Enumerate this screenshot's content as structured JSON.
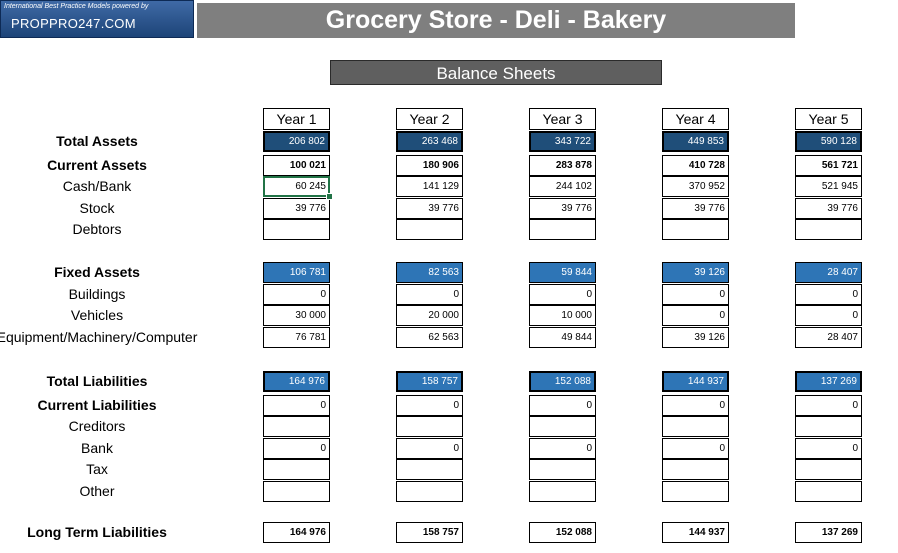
{
  "header": {
    "logo_tagline": "International Best Practice Models powered by",
    "logo_name": "PROPPRO247.COM",
    "title": "Grocery Store - Deli - Bakery",
    "section": "Balance Sheets"
  },
  "years": [
    "Year 1",
    "Year 2",
    "Year 3",
    "Year 4",
    "Year 5"
  ],
  "rows": [
    {
      "label": "Total Assets",
      "values": [
        "206 802",
        "263 468",
        "343 722",
        "449 853",
        "590 128"
      ]
    },
    {
      "label": "Current Assets",
      "values": [
        "100 021",
        "180 906",
        "283 878",
        "410 728",
        "561 721"
      ]
    },
    {
      "label": "Cash/Bank",
      "values": [
        "60 245",
        "141 129",
        "244 102",
        "370 952",
        "521 945"
      ]
    },
    {
      "label": "Stock",
      "values": [
        "39 776",
        "39 776",
        "39 776",
        "39 776",
        "39 776"
      ]
    },
    {
      "label": "Debtors",
      "values": [
        "",
        "",
        "",
        "",
        ""
      ]
    },
    {
      "label": "Fixed Assets",
      "values": [
        "106 781",
        "82 563",
        "59 844",
        "39 126",
        "28 407"
      ]
    },
    {
      "label": "Buildings",
      "values": [
        "0",
        "0",
        "0",
        "0",
        "0"
      ]
    },
    {
      "label": "Vehicles",
      "values": [
        "30 000",
        "20 000",
        "10 000",
        "0",
        "0"
      ]
    },
    {
      "label": "Equipment/Machinery/Computer",
      "values": [
        "76 781",
        "62 563",
        "49 844",
        "39 126",
        "28 407"
      ]
    },
    {
      "label": "Total Liabilities",
      "values": [
        "164 976",
        "158 757",
        "152 088",
        "144 937",
        "137 269"
      ]
    },
    {
      "label": "Current Liabilities",
      "values": [
        "0",
        "0",
        "0",
        "0",
        "0"
      ]
    },
    {
      "label": "Creditors",
      "values": [
        "",
        "",
        "",
        "",
        ""
      ]
    },
    {
      "label": "Bank",
      "values": [
        "0",
        "0",
        "0",
        "0",
        "0"
      ]
    },
    {
      "label": "Tax",
      "values": [
        "",
        "",
        "",
        "",
        ""
      ]
    },
    {
      "label": "Other",
      "values": [
        "",
        "",
        "",
        "",
        ""
      ]
    },
    {
      "label": "Long Term Liabilities",
      "values": [
        "164 976",
        "158 757",
        "152 088",
        "144 937",
        "137 269"
      ]
    }
  ]
}
